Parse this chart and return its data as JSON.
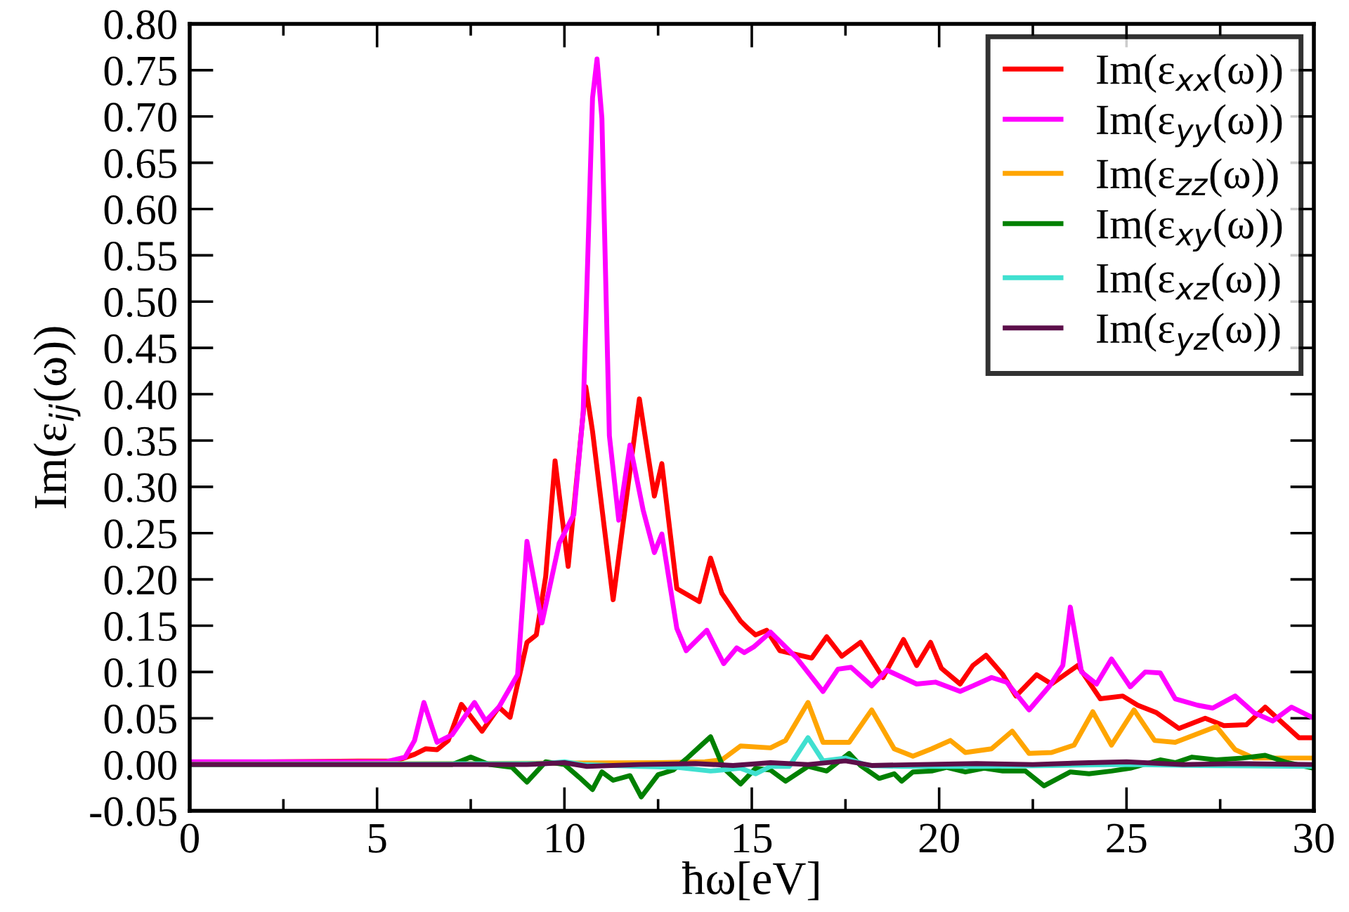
{
  "chart_data": {
    "type": "line",
    "xlabel": "ħω[eV]",
    "ylabel": "Im(ε$_{ij}$(ω))",
    "xlim": [
      0,
      30
    ],
    "ylim": [
      -0.05,
      0.8
    ],
    "xticks": [
      0,
      {
        "value": 2.5,
        "label": null
      },
      5,
      {
        "value": 7.5,
        "label": null
      },
      10,
      {
        "value": 12.5,
        "label": null
      },
      15,
      {
        "value": 17.5,
        "label": null
      },
      20,
      {
        "value": 22.5,
        "label": null
      },
      25,
      {
        "value": 27.5,
        "label": null
      },
      30
    ],
    "yticks": [
      {
        "value": -0.05,
        "label": "-0.05"
      },
      {
        "value": 0,
        "label": "0.00"
      },
      {
        "value": 0.05,
        "label": "0.05"
      },
      {
        "value": 0.1,
        "label": "0.10"
      },
      {
        "value": 0.15,
        "label": "0.15"
      },
      {
        "value": 0.2,
        "label": "0.20"
      },
      {
        "value": 0.25,
        "label": "0.25"
      },
      {
        "value": 0.3,
        "label": "0.30"
      },
      {
        "value": 0.35,
        "label": "0.35"
      },
      {
        "value": 0.4,
        "label": "0.40"
      },
      {
        "value": 0.45,
        "label": "0.45"
      },
      {
        "value": 0.5,
        "label": "0.50"
      },
      {
        "value": 0.55,
        "label": "0.55"
      },
      {
        "value": 0.6,
        "label": "0.60"
      },
      {
        "value": 0.65,
        "label": "0.65"
      },
      {
        "value": 0.7,
        "label": "0.70"
      },
      {
        "value": 0.75,
        "label": "0.75"
      },
      {
        "value": 0.8,
        "label": "0.80"
      }
    ],
    "grid": false,
    "legend": "top right",
    "marker": "none",
    "line_style": "solid",
    "series": [
      {
        "name": "Im(ε$_{xx}$(ω))",
        "color": "#ff0000",
        "x": [
          0,
          5.5,
          6.0,
          6.3,
          6.6,
          6.9,
          7.25,
          7.8,
          8.25,
          8.55,
          9.0,
          9.25,
          9.5,
          9.75,
          9.9,
          10.1,
          10.57,
          10.75,
          11.3,
          12.0,
          12.4,
          12.6,
          13.0,
          13.6,
          13.9,
          14.2,
          14.7,
          14.9,
          15.1,
          15.4,
          15.75,
          16.6,
          17.0,
          17.4,
          17.9,
          18.5,
          19.05,
          19.4,
          19.77,
          20.06,
          20.56,
          20.9,
          21.25,
          21.7,
          22.05,
          22.6,
          23.0,
          23.7,
          24.3,
          24.9,
          25.3,
          25.8,
          26.4,
          27.1,
          27.6,
          28.2,
          28.7,
          29.6,
          30
        ],
        "values": [
          0.002,
          0.004,
          0.011,
          0.017,
          0.016,
          0.026,
          0.065,
          0.036,
          0.062,
          0.051,
          0.132,
          0.14,
          0.203,
          0.328,
          0.279,
          0.214,
          0.408,
          0.36,
          0.178,
          0.395,
          0.29,
          0.325,
          0.19,
          0.176,
          0.223,
          0.185,
          0.155,
          0.147,
          0.14,
          0.145,
          0.123,
          0.115,
          0.138,
          0.117,
          0.132,
          0.094,
          0.135,
          0.107,
          0.132,
          0.104,
          0.087,
          0.107,
          0.118,
          0.097,
          0.074,
          0.097,
          0.087,
          0.107,
          0.071,
          0.074,
          0.064,
          0.056,
          0.039,
          0.05,
          0.042,
          0.043,
          0.062,
          0.029,
          0.029
        ]
      },
      {
        "name": "Im(ε$_{yy}$(ω))",
        "color": "#ff00ff",
        "x": [
          0,
          5.25,
          5.75,
          6.0,
          6.25,
          6.6,
          7.0,
          7.6,
          7.9,
          8.25,
          8.75,
          9.0,
          9.4,
          9.86,
          10.25,
          10.5,
          10.75,
          10.87,
          11.0,
          11.2,
          11.45,
          11.75,
          12.1,
          12.4,
          12.6,
          13.0,
          13.25,
          13.8,
          14.25,
          14.6,
          14.8,
          15.05,
          15.5,
          16.2,
          16.9,
          17.3,
          17.65,
          18.2,
          18.6,
          19.4,
          19.9,
          20.56,
          20.9,
          21.4,
          21.8,
          22.4,
          22.95,
          23.3,
          23.5,
          23.8,
          24.2,
          24.6,
          25.1,
          25.5,
          25.9,
          26.3,
          26.9,
          27.3,
          27.9,
          28.4,
          28.9,
          29.4,
          30
        ],
        "values": [
          0.003,
          0.003,
          0.008,
          0.026,
          0.067,
          0.024,
          0.032,
          0.067,
          0.047,
          0.062,
          0.097,
          0.241,
          0.153,
          0.239,
          0.27,
          0.38,
          0.72,
          0.762,
          0.698,
          0.355,
          0.264,
          0.345,
          0.275,
          0.229,
          0.249,
          0.147,
          0.123,
          0.145,
          0.109,
          0.126,
          0.121,
          0.127,
          0.143,
          0.115,
          0.079,
          0.103,
          0.105,
          0.085,
          0.102,
          0.087,
          0.089,
          0.079,
          0.085,
          0.094,
          0.089,
          0.059,
          0.085,
          0.107,
          0.17,
          0.1,
          0.087,
          0.114,
          0.084,
          0.1,
          0.099,
          0.071,
          0.064,
          0.061,
          0.074,
          0.056,
          0.047,
          0.062,
          0.05
        ]
      },
      {
        "name": "Im(ε$_{zz}$(ω))",
        "color": "#ffa500",
        "x": [
          0,
          12.5,
          13.75,
          14.2,
          14.7,
          15.5,
          15.9,
          16.5,
          16.9,
          17.6,
          18.2,
          18.8,
          19.3,
          19.8,
          20.3,
          20.7,
          21.4,
          21.95,
          22.4,
          23.0,
          23.6,
          24.1,
          24.6,
          25.2,
          25.75,
          26.3,
          27.4,
          27.9,
          28.4,
          30
        ],
        "values": [
          0.0,
          0.002,
          0.003,
          0.005,
          0.02,
          0.018,
          0.026,
          0.067,
          0.024,
          0.024,
          0.059,
          0.017,
          0.009,
          0.017,
          0.026,
          0.013,
          0.017,
          0.036,
          0.012,
          0.013,
          0.021,
          0.057,
          0.021,
          0.059,
          0.026,
          0.024,
          0.041,
          0.016,
          0.007,
          0.007
        ]
      },
      {
        "name": "Im(ε$_{xy}$(ω))",
        "color": "#008000",
        "x": [
          0,
          7.0,
          7.5,
          8.0,
          8.6,
          9.0,
          9.5,
          10.0,
          10.4,
          10.75,
          11.0,
          11.3,
          11.75,
          12.05,
          12.5,
          12.9,
          13.25,
          13.6,
          13.9,
          14.25,
          14.7,
          15.1,
          15.5,
          15.9,
          16.5,
          17.0,
          17.6,
          17.9,
          18.4,
          18.8,
          19.0,
          19.3,
          19.8,
          20.2,
          20.7,
          21.2,
          21.7,
          22.3,
          22.8,
          23.5,
          24.0,
          24.6,
          25.1,
          25.9,
          26.3,
          26.75,
          27.4,
          28.1,
          28.7,
          29.3,
          30
        ],
        "values": [
          0.0,
          0.0,
          0.008,
          0.0,
          -0.003,
          -0.019,
          0.003,
          0.0,
          -0.014,
          -0.027,
          -0.008,
          -0.017,
          -0.012,
          -0.035,
          -0.011,
          -0.006,
          0.006,
          0.019,
          0.03,
          -0.004,
          -0.021,
          -0.004,
          -0.006,
          -0.018,
          -0.002,
          -0.007,
          0.012,
          -0.001,
          -0.015,
          -0.01,
          -0.018,
          -0.008,
          -0.007,
          -0.003,
          -0.008,
          -0.004,
          -0.007,
          -0.007,
          -0.023,
          -0.008,
          -0.01,
          -0.007,
          -0.004,
          0.005,
          0.002,
          0.008,
          0.005,
          0.007,
          0.01,
          0.002,
          -0.004
        ]
      },
      {
        "name": "Im(ε$_{xz}$(ω))",
        "color": "#40e0d0",
        "x": [
          0,
          9.5,
          10.0,
          10.5,
          12.0,
          13.0,
          13.9,
          14.7,
          15.1,
          15.5,
          16.0,
          16.5,
          16.9,
          17.5,
          18.1,
          19.0,
          21.0,
          23.0,
          25.0,
          27.0,
          30
        ],
        "values": [
          0.0,
          0.001,
          0.003,
          0.0,
          -0.002,
          -0.003,
          -0.007,
          -0.004,
          -0.01,
          -0.002,
          -0.002,
          0.029,
          0.004,
          0.007,
          -0.001,
          -0.002,
          -0.002,
          -0.001,
          0.0,
          -0.001,
          -0.002
        ]
      },
      {
        "name": "Im(ε$_{yz}$(ω))",
        "color": "#5c0f4a",
        "x": [
          0,
          9.0,
          10.0,
          10.6,
          12.0,
          13.5,
          14.5,
          15.5,
          16.5,
          17.5,
          18.2,
          19.5,
          21.0,
          22.5,
          24.0,
          25.0,
          26.5,
          28.0,
          30
        ],
        "values": [
          0.0,
          0.0,
          0.002,
          -0.002,
          0.0,
          0.001,
          -0.001,
          0.002,
          0.0,
          0.004,
          -0.001,
          0.0,
          0.001,
          0.0,
          0.002,
          0.003,
          0.0,
          0.001,
          0.0
        ]
      }
    ]
  }
}
